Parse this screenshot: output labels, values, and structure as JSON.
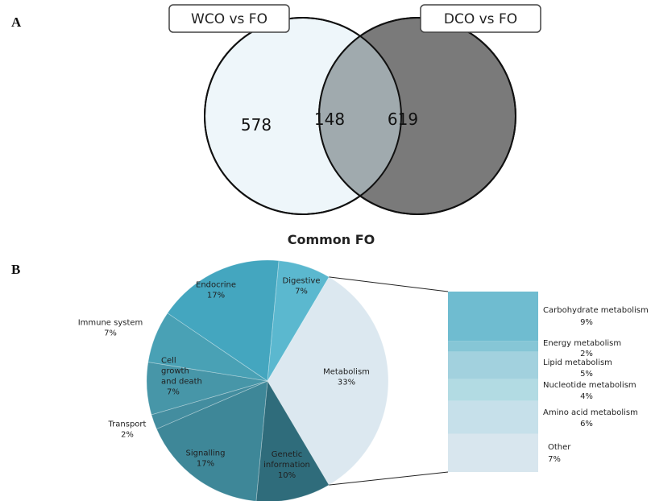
{
  "panel_a_letter": "A",
  "panel_b_letter": "B",
  "chart_data": [
    {
      "type": "venn",
      "sets": [
        {
          "name": "WCO vs FO",
          "only": 578,
          "color": "#eef6fa"
        },
        {
          "name": "DCO vs FO",
          "only": 619,
          "color": "#7a7a7a"
        }
      ],
      "intersection": 148,
      "intersection_color": "#a0aaae"
    },
    {
      "type": "pie",
      "title": "Common FO",
      "slices": [
        {
          "label": "Metabolism",
          "value": 33,
          "display": "33%",
          "color": "#dce8f0"
        },
        {
          "label": "Genetic information",
          "lines": [
            "Genetic",
            "information"
          ],
          "value": 10,
          "display": "10%",
          "color": "#2f6c7b"
        },
        {
          "label": "Signalling",
          "lines": [
            "Signalling"
          ],
          "value": 17,
          "display": "17%",
          "color": "#3e8798"
        },
        {
          "label": "Transport",
          "lines": [
            "Transport"
          ],
          "value": 2,
          "display": "2%",
          "color": "#438d9f"
        },
        {
          "label": "Cell growth and death",
          "lines": [
            "Cell",
            "growth",
            "and death"
          ],
          "value": 7,
          "display": "7%",
          "color": "#4796a8"
        },
        {
          "label": "Immune system",
          "lines": [
            "Immune system"
          ],
          "value": 7,
          "display": "7%",
          "color": "#49a1b5"
        },
        {
          "label": "Endocrine",
          "lines": [
            "Endocrine"
          ],
          "value": 17,
          "display": "17%",
          "color": "#44a6bf"
        },
        {
          "label": "Digestive",
          "lines": [
            "Digestive"
          ],
          "value": 7,
          "display": "7%",
          "color": "#5bb8cf"
        }
      ]
    },
    {
      "type": "bar",
      "stacked": true,
      "breakdown_of": "Metabolism",
      "segments": [
        {
          "label": "Carbohydrate metabolism",
          "value": 9,
          "display": "9%",
          "color": "#6fbcd0"
        },
        {
          "label": "Energy metabolism",
          "value": 2,
          "display": "2%",
          "color": "#86c6d6"
        },
        {
          "label": "Lipid metabolism",
          "value": 5,
          "display": "5%",
          "color": "#a2d1de"
        },
        {
          "label": "Nucleotide metabolism",
          "value": 4,
          "display": "4%",
          "color": "#b2dbe3"
        },
        {
          "label": "Amino acid metabolism",
          "value": 6,
          "display": "6%",
          "color": "#c6e0ea"
        },
        {
          "label": "Other",
          "value": 7,
          "display": "7%",
          "color": "#d8e6ee"
        }
      ]
    }
  ]
}
